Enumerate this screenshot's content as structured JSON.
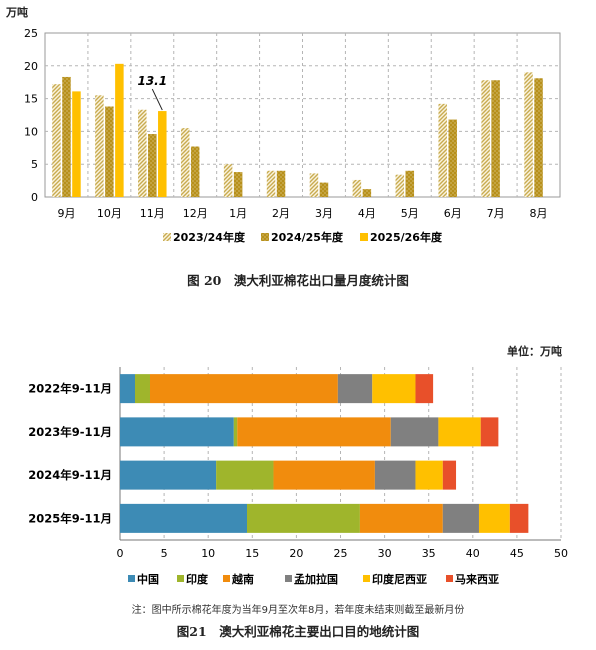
{
  "chart_data": [
    {
      "type": "bar",
      "unit": "万吨",
      "categories": [
        "9月",
        "10月",
        "11月",
        "12月",
        "1月",
        "2月",
        "3月",
        "4月",
        "5月",
        "6月",
        "7月",
        "8月"
      ],
      "series": [
        {
          "name": "2023/24年度",
          "values": [
            17.2,
            15.5,
            13.3,
            10.5,
            5.0,
            4.0,
            3.6,
            2.6,
            3.4,
            14.2,
            17.8,
            19.0
          ],
          "color": "#c8ab50",
          "pattern": "hatch"
        },
        {
          "name": "2024/25年度",
          "values": [
            18.3,
            13.8,
            9.6,
            7.7,
            3.8,
            4.0,
            2.2,
            1.2,
            4.0,
            11.8,
            17.8,
            18.1
          ],
          "color": "#b7901b",
          "pattern": "dots"
        },
        {
          "name": "2025/26年度",
          "values": [
            16.1,
            20.3,
            13.1,
            null,
            null,
            null,
            null,
            null,
            null,
            null,
            null,
            null
          ],
          "color": "#ffc000",
          "pattern": "solid"
        }
      ],
      "ylim": [
        0,
        25
      ],
      "yticks": [
        0,
        5,
        10,
        15,
        20,
        25
      ],
      "grid": "dashed",
      "legend": "bottom",
      "annotation": {
        "text": "13.1",
        "category": "11月",
        "series": "2025/26年度"
      },
      "caption": "图 20　澳大利亚棉花出口量月度统计图"
    },
    {
      "type": "stacked-bar-horizontal",
      "unit": "单位：万吨",
      "categories": [
        "2022年9-11月",
        "2023年9-11月",
        "2024年9-11月",
        "2025年9-11月"
      ],
      "series": [
        {
          "name": "中国",
          "values": [
            1.7,
            12.9,
            10.9,
            14.4
          ],
          "color": "#3d8bb5"
        },
        {
          "name": "印度",
          "values": [
            1.7,
            0.4,
            6.5,
            12.8
          ],
          "color": "#9fb52c"
        },
        {
          "name": "越南",
          "values": [
            21.3,
            17.4,
            11.5,
            9.4
          ],
          "color": "#f18c0d"
        },
        {
          "name": "孟加拉国",
          "values": [
            3.9,
            5.4,
            4.6,
            4.1
          ],
          "color": "#808080"
        },
        {
          "name": "印度尼西亚",
          "values": [
            4.9,
            4.8,
            3.1,
            3.5
          ],
          "color": "#ffc000"
        },
        {
          "name": "马来西亚",
          "values": [
            2.0,
            2.0,
            1.5,
            2.1
          ],
          "color": "#e8502a"
        }
      ],
      "xlim": [
        0,
        50
      ],
      "xticks": [
        0,
        5,
        10,
        15,
        20,
        25,
        30,
        35,
        40,
        45,
        50
      ],
      "grid": "dashed",
      "legend": "bottom",
      "note": "注：图中所示棉花年度为当年9月至次年8月，若年度未结束则截至最新月份",
      "caption": "图21　澳大利亚棉花主要出口目的地统计图"
    }
  ]
}
